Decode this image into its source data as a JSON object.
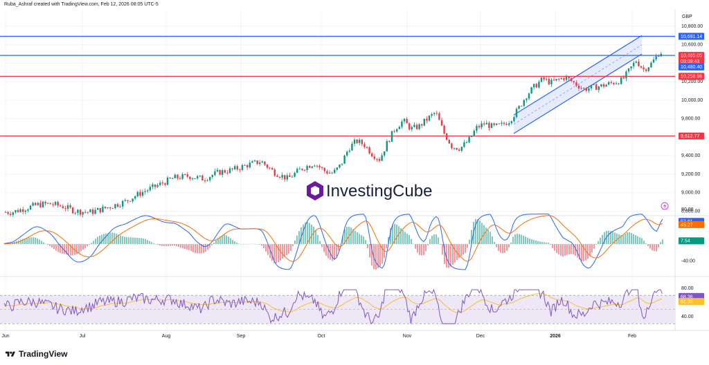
{
  "header": {
    "text": "Ruba_Ashraf created with TradingView.com, Feb 12, 2026 08:05 UTC-5"
  },
  "currency": "GBP",
  "watermark": {
    "text": "InvestingCube"
  },
  "footer": {
    "brand": "TradingView"
  },
  "colors": {
    "up": "#089981",
    "down": "#f23645",
    "resistance_blue": "#2962ff",
    "support_red": "#f23645",
    "channel_fill": "#dbe4fb",
    "macd_line": "#2962ff",
    "signal_line": "#ff6d00",
    "rsi_line": "#7e57c2",
    "rsi_ma": "#fbc02d",
    "rsi_band": "#ede7f6"
  },
  "chart_data": [
    {
      "type": "candlestick",
      "title": "",
      "currency": "GBP",
      "x_tick_labels": [
        "Jun",
        "Jul",
        "Aug",
        "Sep",
        "Oct",
        "Nov",
        "Dec",
        "2026",
        "Feb"
      ],
      "y_tick_labels": [
        "10,800.00",
        "10,600.00",
        "10,400.00",
        "10,200.00",
        "10,000.00",
        "9,800.00",
        "9,600.00",
        "9,400.00",
        "9,200.00",
        "9,000.00",
        "8,800.00"
      ],
      "ylim": [
        8730,
        10940
      ],
      "path": [
        [
          "Jun",
          8790
        ],
        [
          "Jun",
          8830
        ],
        [
          "Jun",
          8870
        ],
        [
          "Jun",
          8880
        ],
        [
          "Jun",
          8850
        ],
        [
          "Jun",
          8800
        ],
        [
          "Jul",
          8790
        ],
        [
          "Jul",
          8840
        ],
        [
          "Jul",
          8900
        ],
        [
          "Jul",
          9000
        ],
        [
          "Jul",
          9080
        ],
        [
          "Aug",
          9160
        ],
        [
          "Aug",
          9180
        ],
        [
          "Aug",
          9150
        ],
        [
          "Aug",
          9220
        ],
        [
          "Aug",
          9250
        ],
        [
          "Sep",
          9300
        ],
        [
          "Sep",
          9340
        ],
        [
          "Sep",
          9220
        ],
        [
          "Sep",
          9150
        ],
        [
          "Sep",
          9260
        ],
        [
          "Sep",
          9320
        ],
        [
          "Oct",
          9230
        ],
        [
          "Oct",
          9210
        ],
        [
          "Oct",
          9300
        ],
        [
          "Oct",
          9480
        ],
        [
          "Oct",
          9560
        ],
        [
          "Oct",
          9520
        ],
        [
          "Oct",
          9420
        ],
        [
          "Oct",
          9360
        ],
        [
          "Oct",
          9550
        ],
        [
          "Oct",
          9700
        ],
        [
          "Oct",
          9780
        ],
        [
          "Nov",
          9690
        ],
        [
          "Nov",
          9720
        ],
        [
          "Nov",
          9800
        ],
        [
          "Nov",
          9870
        ],
        [
          "Nov",
          9650
        ],
        [
          "Nov",
          9500
        ],
        [
          "Nov",
          9480
        ],
        [
          "Nov",
          9560
        ],
        [
          "Nov",
          9700
        ],
        [
          "Dec",
          9750
        ],
        [
          "Dec",
          9710
        ],
        [
          "Dec",
          9730
        ],
        [
          "Dec",
          9780
        ],
        [
          "Dec",
          9900
        ],
        [
          "Dec",
          10050
        ],
        [
          "Dec",
          10150
        ],
        [
          "Dec",
          10230
        ],
        [
          "Dec",
          10190
        ],
        [
          "2026",
          10250
        ],
        [
          "2026",
          10120
        ],
        [
          "2026",
          10160
        ],
        [
          "2026",
          10220
        ],
        [
          "Feb",
          10430
        ],
        [
          "Feb",
          10330
        ],
        [
          "Feb",
          10400
        ],
        [
          "Feb",
          10520
        ]
      ],
      "price_levels": [
        {
          "value": 10691.14,
          "label": "10,691.14",
          "color": "#2962ff"
        },
        {
          "value": 10485.05,
          "label": "10,485.05",
          "color": "#2962ff"
        },
        {
          "value": 10258.96,
          "label": "10,258.96",
          "color": "#f23645"
        },
        {
          "value": 9612.77,
          "label": "9,612.77",
          "color": "#f23645"
        }
      ],
      "price_tags": [
        {
          "value": 10485.05,
          "label": "10,485.05",
          "color": "#f23645"
        },
        {
          "value": 10420,
          "label": "03:09:43",
          "color": "#f23645"
        },
        {
          "value": 10360,
          "label": "10,480.40",
          "color": "#2962ff"
        }
      ],
      "channel": {
        "start": [
          "Dec",
          9640
        ],
        "end": [
          "Feb",
          10500
        ],
        "width": 200
      }
    },
    {
      "type": "macd",
      "y_tick_labels": [
        "80.00",
        "-40.00"
      ],
      "ylim": [
        -70,
        90
      ],
      "values": {
        "macd": 52.81,
        "signal": 45.27,
        "histogram": 7.54
      },
      "value_labels": [
        "52.81",
        "45.27",
        "7.54"
      ]
    },
    {
      "type": "rsi",
      "y_tick_labels": [
        "80.00",
        "40.00"
      ],
      "ylim": [
        22,
        88
      ],
      "band": [
        30,
        70
      ],
      "values": {
        "rsi": 68.36,
        "ma": 61.38
      },
      "value_labels": [
        "68.36",
        "61.38"
      ]
    }
  ]
}
